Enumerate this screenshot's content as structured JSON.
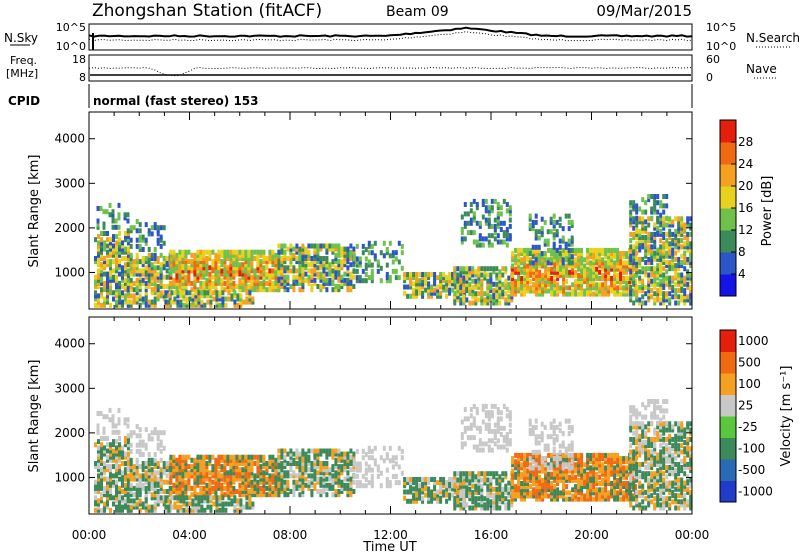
{
  "header": {
    "station_title": "Zhongshan Station (fitACF)",
    "beam": "Beam 09",
    "date": "09/Mar/2015"
  },
  "sky_panel": {
    "left_label": "N.Sky",
    "left_ticks": [
      "10^5",
      "10^0"
    ],
    "right_ticks": [
      "10^5",
      "10^0"
    ],
    "right_label": "N.Search"
  },
  "freq_panel": {
    "left_label_line1": "Freq.",
    "left_label_line2": "[MHz]",
    "left_ticks": [
      "18",
      "8"
    ],
    "right_ticks": [
      "60",
      "0"
    ],
    "right_label": "Nave"
  },
  "cpid_panel": {
    "label": "CPID",
    "value": "normal (fast stereo) 153"
  },
  "chart_data": [
    {
      "type": "heatmap",
      "ylabel": "Slant Range [km]",
      "yticks": [
        "1000",
        "2000",
        "3000",
        "4000"
      ],
      "ylim": [
        180,
        4600
      ],
      "xlim": [
        0,
        24
      ],
      "colorbar": {
        "label": "Power [dB]",
        "ticks": [
          "4",
          "8",
          "12",
          "16",
          "20",
          "24",
          "28"
        ],
        "range": [
          0,
          32
        ],
        "colors": [
          "#1414e6",
          "#2c55c8",
          "#3c8a5a",
          "#6ec24a",
          "#e8d21e",
          "#f5a020",
          "#f06a14",
          "#e61e0c"
        ]
      }
    },
    {
      "type": "heatmap",
      "ylabel": "Slant Range [km]",
      "yticks": [
        "1000",
        "2000",
        "3000",
        "4000"
      ],
      "ylim": [
        180,
        4600
      ],
      "xlim": [
        0,
        24
      ],
      "xlabel": "Time UT",
      "xticks": [
        "00:00",
        "04:00",
        "08:00",
        "12:00",
        "16:00",
        "20:00",
        "00:00"
      ],
      "colorbar": {
        "label": "Velocity [m s⁻¹]",
        "ticks": [
          "1000",
          "500",
          "100",
          "25",
          "-25",
          "-100",
          "-500",
          "-1000"
        ],
        "colors": [
          "#1e3cc8",
          "#2a6ab4",
          "#3c8a5a",
          "#5ac83c",
          "#c8c8c8",
          "#f5a020",
          "#f06a14",
          "#e61e0c"
        ]
      }
    }
  ]
}
